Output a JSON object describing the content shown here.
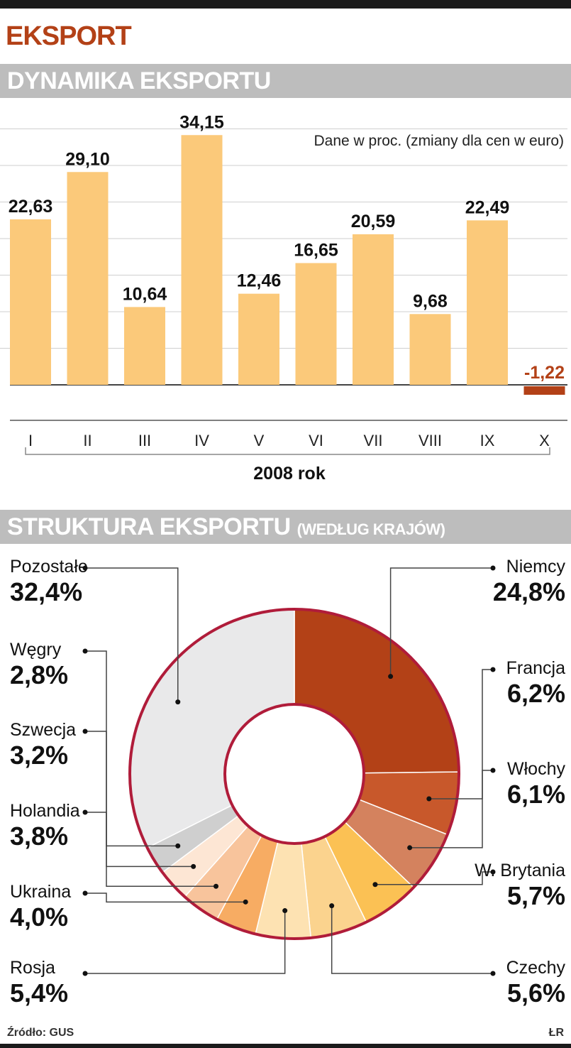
{
  "header": {
    "main_title": "EKSPORT",
    "bar_section_title": "DYNAMIKA EKSPORTU",
    "pie_section_title": "STRUKTURA EKSPORTU",
    "pie_section_subtitle": "(WEDŁUG KRAJÓW)"
  },
  "footer": {
    "source": "Źródło: GUS",
    "author": "ŁR"
  },
  "colors": {
    "title": "#b34117",
    "band": "#bdbdbd",
    "bar_positive": "#fbc97a",
    "bar_negative": "#b34117",
    "negative_label": "#b34117",
    "pie_ring": "#b01c3a"
  },
  "chart_data": [
    {
      "type": "bar",
      "title": "DYNAMIKA EKSPORTU",
      "annotation": "Dane w proc. (zmiany dla cen w euro)",
      "xlabel": "2008 rok",
      "ylabel": "",
      "categories": [
        "I",
        "II",
        "III",
        "IV",
        "V",
        "VI",
        "VII",
        "VIII",
        "IX",
        "X"
      ],
      "values": [
        22.63,
        29.1,
        10.64,
        34.15,
        12.46,
        16.65,
        20.59,
        9.68,
        22.49,
        -1.22
      ],
      "value_labels": [
        "22,63",
        "29,10",
        "10,64",
        "34,15",
        "12,46",
        "16,65",
        "20,59",
        "9,68",
        "22,49",
        "-1,22"
      ],
      "ylim": [
        -2,
        40
      ],
      "grid": true,
      "legend": false
    },
    {
      "type": "pie",
      "title": "STRUKTURA EKSPORTU (WEDŁUG KRAJÓW)",
      "donut": true,
      "slices": [
        {
          "label": "Niemcy",
          "value": 24.8,
          "value_label": "24,8%",
          "color": "#b34117"
        },
        {
          "label": "Francja",
          "value": 6.2,
          "value_label": "6,2%",
          "color": "#c8582b"
        },
        {
          "label": "Włochy",
          "value": 6.1,
          "value_label": "6,1%",
          "color": "#d4825e"
        },
        {
          "label": "W. Brytania",
          "value": 5.7,
          "value_label": "5,7%",
          "color": "#fbc154"
        },
        {
          "label": "Czechy",
          "value": 5.6,
          "value_label": "5,6%",
          "color": "#fbd38e"
        },
        {
          "label": "Rosja",
          "value": 5.4,
          "value_label": "5,4%",
          "color": "#fde2b2"
        },
        {
          "label": "Ukraina",
          "value": 4.0,
          "value_label": "4,0%",
          "color": "#f7ac63"
        },
        {
          "label": "Holandia",
          "value": 3.8,
          "value_label": "3,8%",
          "color": "#f8c49c"
        },
        {
          "label": "Szwecja",
          "value": 3.2,
          "value_label": "3,2%",
          "color": "#fde6d4"
        },
        {
          "label": "Węgry",
          "value": 2.8,
          "value_label": "2,8%",
          "color": "#cfcfcf"
        },
        {
          "label": "Pozostałe",
          "value": 32.4,
          "value_label": "32,4%",
          "color": "#e9e9ea"
        }
      ]
    }
  ]
}
